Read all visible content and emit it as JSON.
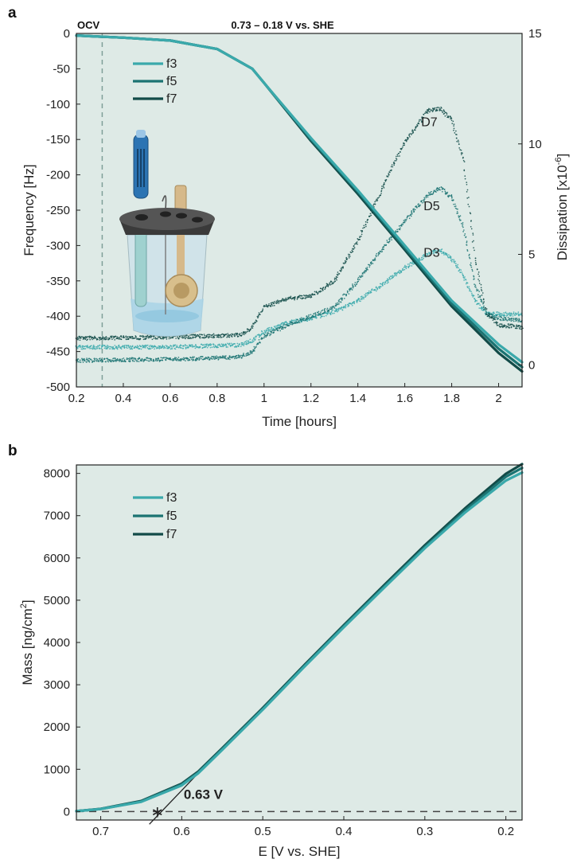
{
  "chart_data": [
    {
      "panel": "a",
      "type": "line",
      "xlabel": "Time [hours]",
      "ylabel": "Frequency [Hz]",
      "y2label_base": "Dissipation [x10",
      "y2label_exp": "-6",
      "y2label_end": "]",
      "xlim": [
        0.2,
        2.1
      ],
      "ylim": [
        -500,
        0
      ],
      "y2lim": [
        -1.0,
        15
      ],
      "xticks": [
        "0.2",
        "0.4",
        "0.6",
        "0.8",
        "1",
        "1.2",
        "1.4",
        "1.6",
        "1.8",
        "2"
      ],
      "yticks": [
        "0",
        "-50",
        "-100",
        "-150",
        "-200",
        "-250",
        "-300",
        "-350",
        "-400",
        "-450",
        "-500"
      ],
      "y2ticks": [
        "0",
        "5",
        "10",
        "15"
      ],
      "top_annotations": {
        "left": "OCV",
        "center": "0.73 – 0.18 V  vs. SHE"
      },
      "ocv_line_x": 0.31,
      "legend": [
        "f3",
        "f5",
        "f7"
      ],
      "colors": {
        "f3": "#3aa9ab",
        "f5": "#1b7372",
        "f7": "#124b48",
        "bg": "#deeae6"
      },
      "frequency_series": [
        {
          "name": "f3",
          "x": [
            0.2,
            0.4,
            0.6,
            0.8,
            0.95,
            1.0,
            1.2,
            1.4,
            1.6,
            1.8,
            2.0,
            2.1
          ],
          "y": [
            -3,
            -6,
            -10,
            -22,
            -50,
            -70,
            -148,
            -222,
            -300,
            -378,
            -440,
            -465
          ]
        },
        {
          "name": "f5",
          "x": [
            0.2,
            0.4,
            0.6,
            0.8,
            0.95,
            1.0,
            1.2,
            1.4,
            1.6,
            1.8,
            2.0,
            2.1
          ],
          "y": [
            -3,
            -6,
            -10,
            -22,
            -50,
            -70,
            -150,
            -224,
            -303,
            -382,
            -446,
            -472
          ]
        },
        {
          "name": "f7",
          "x": [
            0.2,
            0.4,
            0.6,
            0.8,
            0.95,
            1.0,
            1.2,
            1.4,
            1.6,
            1.8,
            2.0,
            2.1
          ],
          "y": [
            -3,
            -6,
            -10,
            -22,
            -50,
            -70,
            -152,
            -227,
            -306,
            -386,
            -452,
            -478
          ]
        }
      ],
      "dissipation_series": [
        {
          "name": "D3",
          "x": [
            0.2,
            0.6,
            0.9,
            0.95,
            1.0,
            1.1,
            1.2,
            1.3,
            1.4,
            1.5,
            1.6,
            1.7,
            1.75,
            1.8,
            1.85,
            1.9,
            1.95,
            2.0,
            2.1
          ],
          "y": [
            0.8,
            0.8,
            0.9,
            1.1,
            1.5,
            1.9,
            2.1,
            2.4,
            2.9,
            3.6,
            4.4,
            5.0,
            5.2,
            4.8,
            4.0,
            2.9,
            2.3,
            2.3,
            2.3
          ]
        },
        {
          "name": "D5",
          "x": [
            0.2,
            0.6,
            0.9,
            0.95,
            1.0,
            1.1,
            1.2,
            1.3,
            1.4,
            1.5,
            1.6,
            1.7,
            1.75,
            1.8,
            1.85,
            1.9,
            1.95,
            2.0,
            2.1
          ],
          "y": [
            0.2,
            0.25,
            0.35,
            0.6,
            1.3,
            1.8,
            2.2,
            2.6,
            3.8,
            5.2,
            6.5,
            7.7,
            8.0,
            7.6,
            6.2,
            3.6,
            2.3,
            2.1,
            2.0
          ]
        },
        {
          "name": "D7",
          "x": [
            0.2,
            0.6,
            0.9,
            0.95,
            1.0,
            1.1,
            1.2,
            1.3,
            1.4,
            1.5,
            1.6,
            1.7,
            1.75,
            1.8,
            1.85,
            1.9,
            1.95,
            2.0,
            2.1
          ],
          "y": [
            1.2,
            1.25,
            1.35,
            1.7,
            2.6,
            3.0,
            3.1,
            3.8,
            5.6,
            7.9,
            10.1,
            11.5,
            11.6,
            11.1,
            9.3,
            4.8,
            2.3,
            1.8,
            1.7
          ]
        }
      ],
      "curve_labels": [
        {
          "text": "D7",
          "x": 1.67,
          "y": 10.8
        },
        {
          "text": "D5",
          "x": 1.68,
          "y": 7.0
        },
        {
          "text": "D3",
          "x": 1.68,
          "y": 4.9
        }
      ]
    },
    {
      "panel": "b",
      "type": "line",
      "xlabel": "E [V vs. SHE]",
      "ylabel_base": "Mass [ng/cm",
      "ylabel_exp": "2",
      "ylabel_end": "]",
      "xlim": [
        0.73,
        0.18
      ],
      "ylim": [
        -200,
        8200
      ],
      "xticks": [
        "0.7",
        "0.6",
        "0.5",
        "0.4",
        "0.3",
        "0.2"
      ],
      "yticks": [
        "0",
        "1000",
        "2000",
        "3000",
        "4000",
        "5000",
        "6000",
        "7000",
        "8000"
      ],
      "legend": [
        "f3",
        "f5",
        "f7"
      ],
      "series": [
        {
          "name": "f3",
          "x": [
            0.73,
            0.7,
            0.65,
            0.6,
            0.58,
            0.55,
            0.5,
            0.45,
            0.4,
            0.35,
            0.3,
            0.25,
            0.2,
            0.18
          ],
          "y": [
            10,
            60,
            230,
            620,
            900,
            1460,
            2410,
            3400,
            4360,
            5300,
            6230,
            7080,
            7830,
            8020
          ]
        },
        {
          "name": "f5",
          "x": [
            0.73,
            0.7,
            0.65,
            0.6,
            0.58,
            0.55,
            0.5,
            0.45,
            0.4,
            0.35,
            0.3,
            0.25,
            0.2,
            0.18
          ],
          "y": [
            10,
            60,
            240,
            640,
            920,
            1480,
            2430,
            3420,
            4390,
            5330,
            6260,
            7130,
            7920,
            8130
          ]
        },
        {
          "name": "f7",
          "x": [
            0.73,
            0.7,
            0.65,
            0.6,
            0.58,
            0.55,
            0.5,
            0.45,
            0.4,
            0.35,
            0.3,
            0.25,
            0.2,
            0.18
          ],
          "y": [
            10,
            65,
            250,
            660,
            940,
            1500,
            2450,
            3440,
            4410,
            5360,
            6300,
            7180,
            7990,
            8220
          ]
        }
      ],
      "zero_line_y": 0,
      "onset": {
        "label": "0.63 V",
        "x": 0.63,
        "y": 0
      },
      "tangent": {
        "x": [
          0.64,
          0.58
        ],
        "y": [
          -300,
          900
        ]
      }
    }
  ]
}
